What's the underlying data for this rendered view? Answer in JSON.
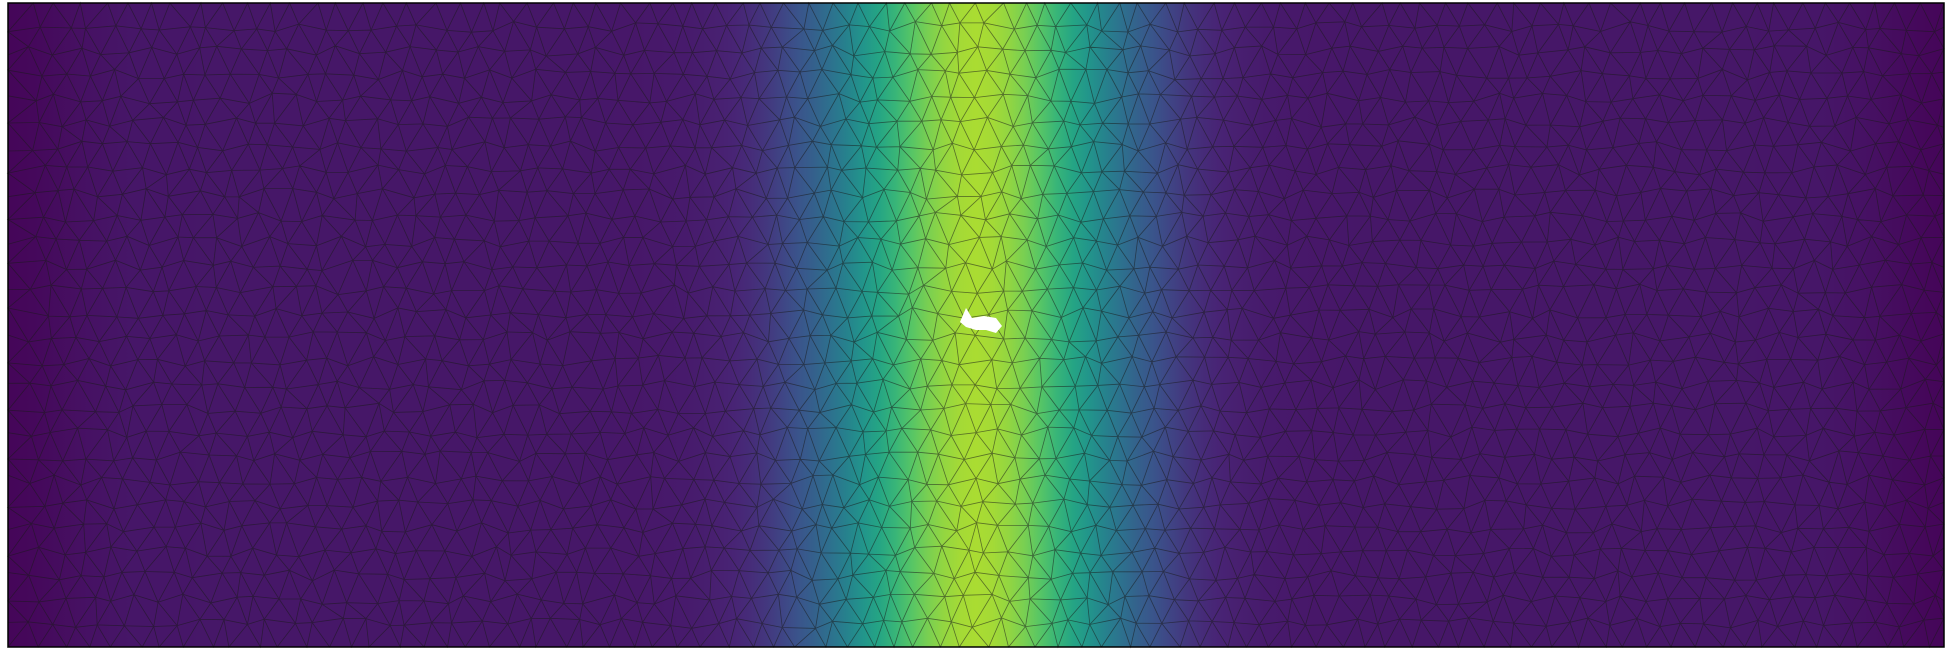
{
  "figure": {
    "description_type": "finite-element-mesh-field",
    "colormap": "viridis",
    "colormap_stops": [
      "#440154",
      "#31688e",
      "#35b779",
      "#fde725"
    ],
    "mesh_line_color": "#1a1a1a",
    "frame_color": "#000000",
    "hole_color": "#ffffff",
    "field": {
      "kind": "vertical-band",
      "peak_fraction_x": 0.5,
      "peak_value": 0.88,
      "band_width_fraction": 0.075,
      "background_value": 0.08,
      "edge_dip_value": 0.02
    },
    "mesh": {
      "element_type": "triangle",
      "approx_columns": 82,
      "approx_rows": 27
    }
  }
}
